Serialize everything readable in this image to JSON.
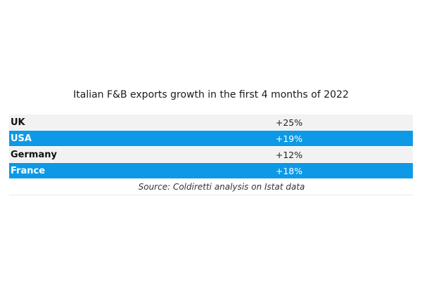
{
  "chart_data": {
    "type": "table",
    "title": "Italian F&B exports growth in the first 4 months of 2022",
    "rows": [
      {
        "country": "UK",
        "value": "+25%",
        "style": "light"
      },
      {
        "country": "USA",
        "value": "+19%",
        "style": "blue"
      },
      {
        "country": "Germany",
        "value": "+12%",
        "style": "light"
      },
      {
        "country": "France",
        "value": "+18%",
        "style": "blue"
      }
    ],
    "source": "Source: Coldiretti analysis on Istat data"
  },
  "colors": {
    "row_light": "#f2f2f2",
    "row_accent": "#0d99e6"
  }
}
